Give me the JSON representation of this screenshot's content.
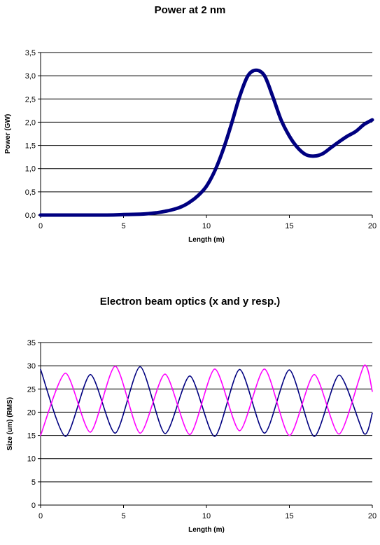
{
  "chart_data": [
    {
      "type": "line",
      "title": "Power at 2 nm",
      "xlabel": "Length (m)",
      "ylabel": "Power (GW)",
      "xlim": [
        0,
        20
      ],
      "ylim": [
        0,
        3.5
      ],
      "x_ticks": [
        "0",
        "5",
        "10",
        "15",
        "20"
      ],
      "y_ticks": [
        "0,0",
        "0,5",
        "1,0",
        "1,5",
        "2,0",
        "2,5",
        "3,0",
        "3,5"
      ],
      "grid": true,
      "series": [
        {
          "color": "#000080",
          "x": [
            0,
            2,
            4,
            5,
            6,
            6.5,
            7,
            7.5,
            8,
            8.5,
            9,
            9.5,
            10,
            10.5,
            11,
            11.5,
            12,
            12.5,
            13,
            13.5,
            14,
            14.5,
            15,
            15.5,
            16,
            16.5,
            17,
            17.5,
            18,
            18.5,
            19,
            19.5,
            20
          ],
          "y": [
            0.0,
            0.0,
            0.0,
            0.01,
            0.02,
            0.03,
            0.05,
            0.08,
            0.12,
            0.18,
            0.28,
            0.42,
            0.62,
            0.95,
            1.4,
            1.95,
            2.55,
            3.0,
            3.12,
            3.0,
            2.55,
            2.05,
            1.7,
            1.45,
            1.3,
            1.27,
            1.32,
            1.45,
            1.58,
            1.7,
            1.8,
            1.95,
            2.05
          ]
        }
      ]
    },
    {
      "type": "line",
      "title": "Electron beam optics  (x and y resp.)",
      "xlabel": "Length (m)",
      "ylabel": "Size (um) (RMS)",
      "xlim": [
        0,
        20
      ],
      "ylim": [
        0,
        35
      ],
      "x_ticks": [
        "0",
        "5",
        "10",
        "15",
        "20"
      ],
      "y_ticks": [
        "0",
        "5",
        "10",
        "15",
        "20",
        "25",
        "30",
        "35"
      ],
      "grid": true,
      "series": [
        {
          "color": "#000080",
          "x": [
            0,
            1.5,
            3.0,
            4.5,
            6.0,
            7.5,
            9.0,
            10.5,
            12.0,
            13.5,
            15.0,
            16.5,
            18.0,
            19.5,
            20
          ],
          "y": [
            29.2,
            14.8,
            28.1,
            15.5,
            29.8,
            15.4,
            27.8,
            14.8,
            29.2,
            15.5,
            29.1,
            14.8,
            28.0,
            15.4,
            19.8
          ]
        },
        {
          "color": "#ff00ff",
          "x": [
            0,
            1.5,
            3.0,
            4.5,
            6.0,
            7.5,
            9.0,
            10.5,
            12.0,
            13.5,
            15.0,
            16.5,
            18.0,
            19.5,
            20
          ],
          "y": [
            15.0,
            28.4,
            15.7,
            29.9,
            15.5,
            28.2,
            15.2,
            29.3,
            16.0,
            29.3,
            15.0,
            28.1,
            15.3,
            30.0,
            24.5
          ]
        }
      ]
    }
  ]
}
